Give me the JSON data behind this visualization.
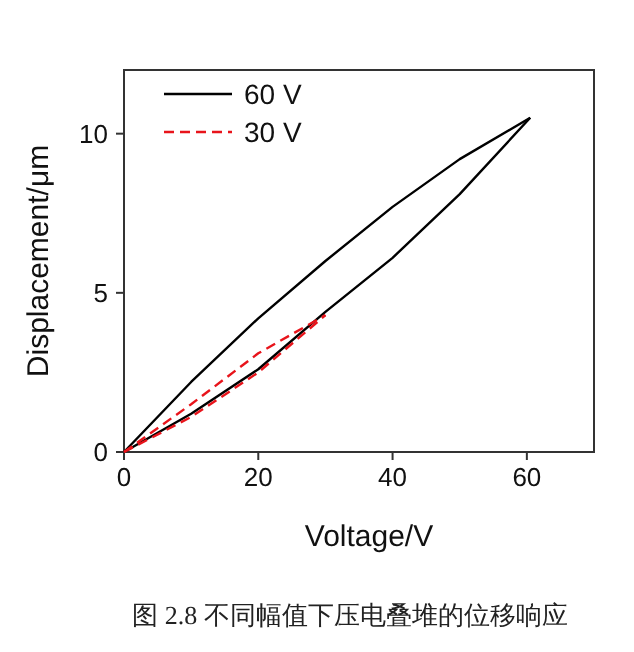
{
  "chart_data": {
    "type": "line",
    "xlabel": "Voltage/V",
    "ylabel": "Displacement/μm",
    "annotations": [
      "图 2.8  不同幅值下压电叠堆的位移响应"
    ],
    "xlim": [
      0,
      70
    ],
    "ylim": [
      0,
      12
    ],
    "xticks": [
      0,
      20,
      40,
      60
    ],
    "yticks": [
      0,
      5,
      10
    ],
    "grid": false,
    "legend": "top left",
    "marker": "none",
    "series": [
      {
        "name": "60 V",
        "color": "#000000",
        "line_style": "solid",
        "x": [
          0,
          10,
          20,
          30,
          40,
          50,
          60.5
        ],
        "values": [
          0,
          1.2,
          2.6,
          4.4,
          6.1,
          8.1,
          10.5
        ]
      },
      {
        "color": "#000000",
        "line_style": "solid",
        "x": [
          0,
          10,
          20,
          30,
          40,
          50,
          60.5
        ],
        "values": [
          0,
          2.2,
          4.2,
          6.0,
          7.7,
          9.2,
          10.5
        ]
      },
      {
        "name": "30 V",
        "color": "#e8141b",
        "line_style": "dashed",
        "x": [
          0,
          10,
          20,
          30
        ],
        "values": [
          0,
          1.1,
          2.5,
          4.3
        ]
      },
      {
        "color": "#e8141b",
        "line_style": "dashed",
        "x": [
          0,
          10,
          20,
          30
        ],
        "values": [
          0,
          1.5,
          3.1,
          4.3
        ]
      }
    ]
  }
}
